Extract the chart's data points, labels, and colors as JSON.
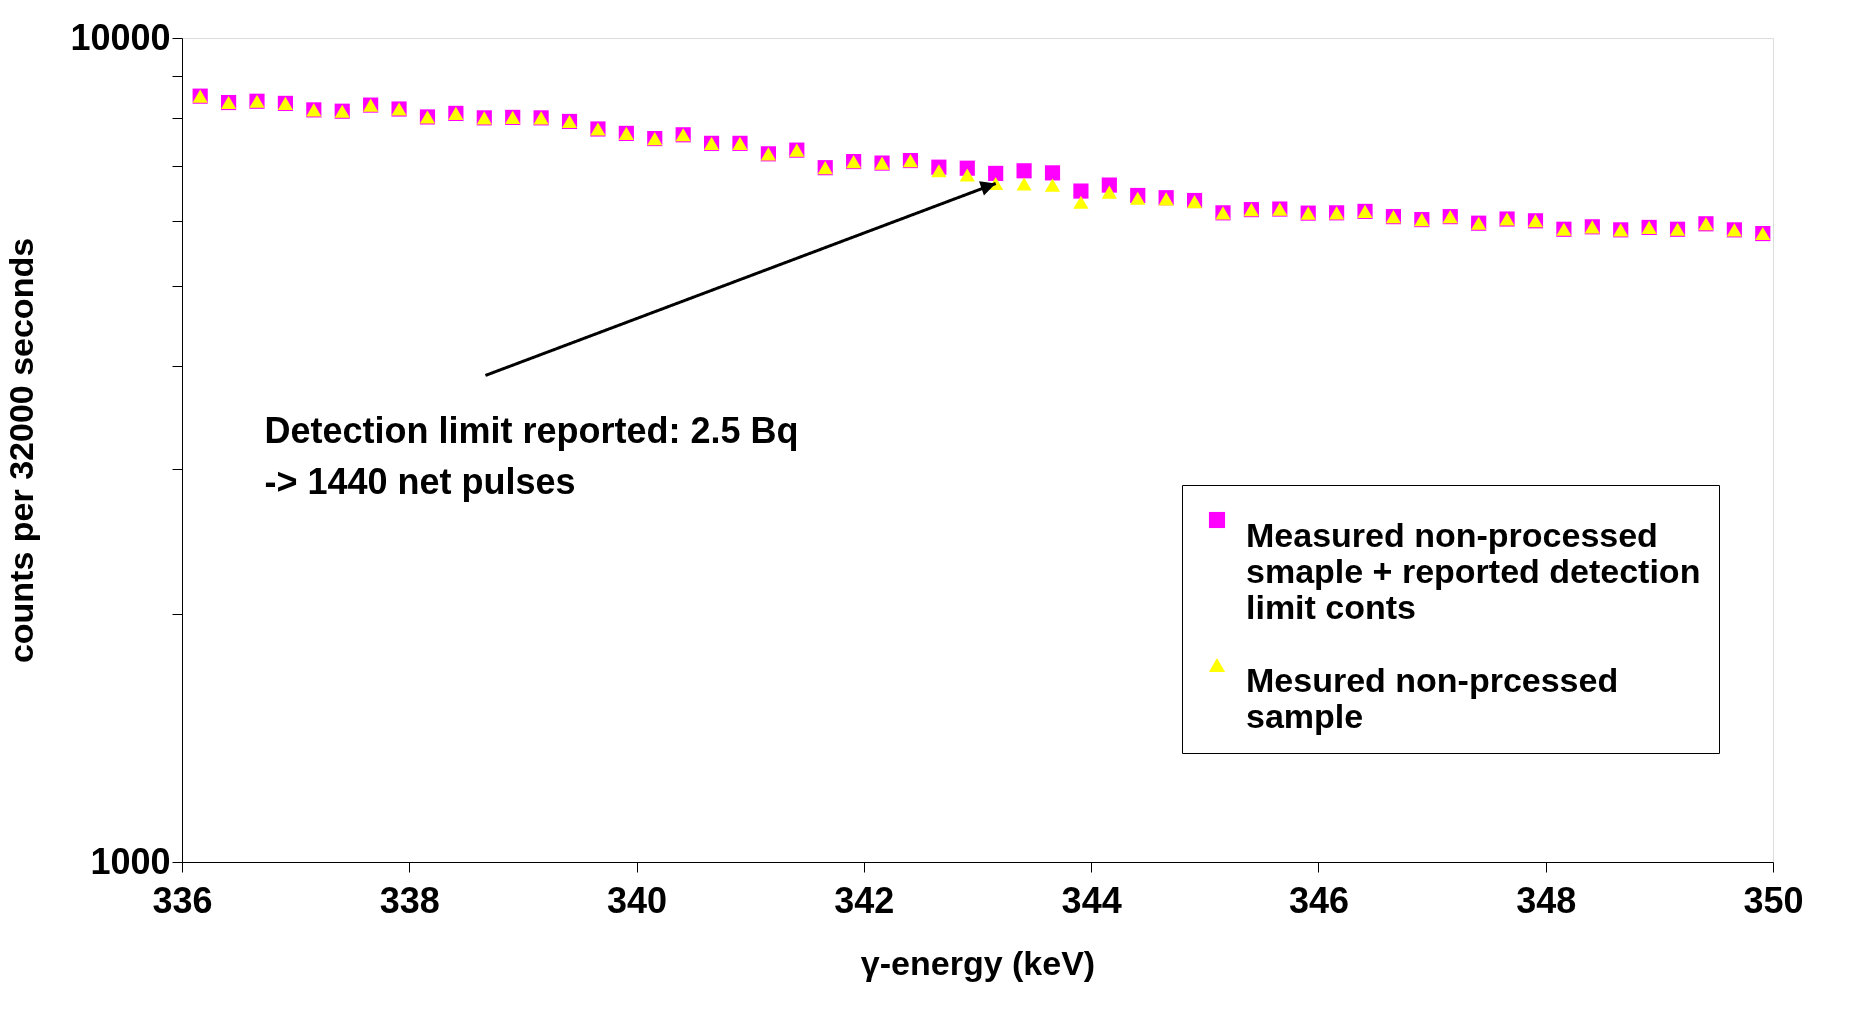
{
  "chart_data": {
    "type": "scatter",
    "xlabel": "γ-energy (keV)",
    "ylabel": "counts per 32000 seconds",
    "x": [
      336.16,
      336.41,
      336.66,
      336.91,
      337.16,
      337.41,
      337.66,
      337.91,
      338.16,
      338.41,
      338.66,
      338.91,
      339.16,
      339.41,
      339.66,
      339.91,
      340.16,
      340.41,
      340.66,
      340.91,
      341.16,
      341.41,
      341.66,
      341.91,
      342.16,
      342.41,
      342.66,
      342.91,
      343.16,
      343.41,
      343.66,
      343.91,
      344.16,
      344.41,
      344.66,
      344.91,
      345.16,
      345.41,
      345.66,
      345.91,
      346.16,
      346.41,
      346.66,
      346.91,
      347.16,
      347.41,
      347.66,
      347.91,
      348.16,
      348.41,
      348.66,
      348.91,
      349.16,
      349.41,
      349.66,
      349.91
    ],
    "series": [
      {
        "name": "Measured non-processed smaple + reported detection limit conts",
        "color": "#ff00ff",
        "marker": "square",
        "values": [
          8500,
          8350,
          8380,
          8330,
          8180,
          8150,
          8290,
          8200,
          8020,
          8100,
          8000,
          8010,
          8000,
          7920,
          7755,
          7660,
          7550,
          7630,
          7450,
          7450,
          7235,
          7310,
          6960,
          7080,
          7050,
          7100,
          6970,
          6950,
          6850,
          6900,
          6860,
          6520,
          6630,
          6440,
          6400,
          6350,
          6135,
          6190,
          6200,
          6130,
          6135,
          6160,
          6070,
          6020,
          6070,
          5960,
          6030,
          6000,
          5860,
          5900,
          5850,
          5890,
          5860,
          5950,
          5850,
          5790
        ]
      },
      {
        "name": "Mesured non-prcessed sample",
        "color": "#ffff00",
        "marker": "triangle",
        "values": [
          8500,
          8350,
          8380,
          8330,
          8180,
          8150,
          8290,
          8200,
          8020,
          8100,
          8000,
          8010,
          8000,
          7920,
          7755,
          7660,
          7550,
          7630,
          7450,
          7450,
          7235,
          7310,
          6960,
          7080,
          7050,
          7100,
          6900,
          6820,
          6660,
          6650,
          6630,
          6320,
          6500,
          6390,
          6380,
          6330,
          6135,
          6190,
          6200,
          6130,
          6135,
          6160,
          6070,
          6020,
          6070,
          5960,
          6030,
          6000,
          5860,
          5900,
          5850,
          5890,
          5860,
          5950,
          5850,
          5790
        ]
      }
    ],
    "xlim": [
      336,
      350
    ],
    "xticks": [
      336,
      338,
      340,
      342,
      344,
      346,
      348,
      350
    ],
    "ylim": [
      1000,
      10000
    ],
    "log": true,
    "yticks": [
      1000,
      {
        "value": 2000,
        "label": null
      },
      {
        "value": 3000,
        "label": null
      },
      {
        "value": 4000,
        "label": null
      },
      {
        "value": 5000,
        "label": null
      },
      {
        "value": 6000,
        "label": null
      },
      {
        "value": 7000,
        "label": null
      },
      {
        "value": 8000,
        "label": null
      },
      {
        "value": 9000,
        "label": null
      },
      10000
    ],
    "grid": false,
    "legend": "right",
    "annotations": [
      {
        "text": "Detection limit reported: 2.5 Bq\n -> 1440 net pulses",
        "x": 343.16,
        "y": 6660
      }
    ]
  }
}
